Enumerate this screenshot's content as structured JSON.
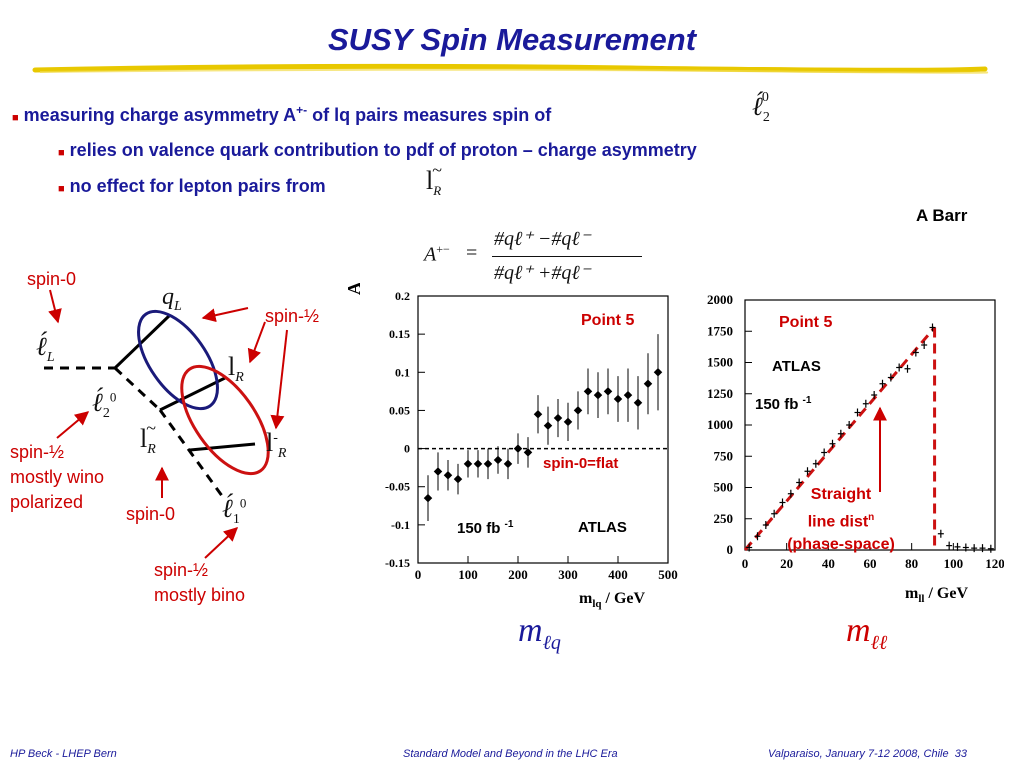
{
  "title": "SUSY Spin Measurement",
  "bullets": {
    "b1": "measuring charge asymmetry A",
    "b1_sup": "+-",
    "b1_tail": " of lq pairs measures spin of",
    "b2": "relies on valence quark contribution to pdf of proton – charge asymmetry",
    "b3": "no effect for lepton pairs from"
  },
  "author": "A Barr",
  "formula": {
    "lhs": "A",
    "lhs_sup": "+−",
    "eq": "=",
    "num": "#qℓ⁺ −#qℓ⁻",
    "den": "#qℓ⁺ +#qℓ⁻"
  },
  "diagram": {
    "spin0_top": "spin-0",
    "spin_half_top": "spin-½",
    "spin_half_wino": "spin-½",
    "mostly_wino": "mostly wino",
    "polarized": "polarized",
    "spin0_bottom": "spin-0",
    "spin_half_bino": "spin-½",
    "mostly_bino": "mostly bino",
    "q_L": "q",
    "q_L_sub": "L",
    "l_R": "l",
    "l_R_sub": "R",
    "l_bar": "l",
    "l_bar_sup": "-",
    "l_bar_sub": "R"
  },
  "chart_data": [
    {
      "type": "scatter",
      "title": "",
      "xlabel": "m",
      "xlabel_sub": "lq",
      "xlabel_unit": " / GeV",
      "ylabel": "A",
      "ylabel_sup": "+-",
      "xlim": [
        0,
        500
      ],
      "ylim": [
        -0.15,
        0.2
      ],
      "x_ticks": [
        0,
        100,
        200,
        300,
        400,
        500
      ],
      "y_ticks": [
        -0.15,
        -0.1,
        -0.05,
        0,
        0.05,
        0.1,
        0.15,
        0.2
      ],
      "y_tick_labels": [
        "-0.15",
        "-0.1",
        "-0.05",
        "0",
        "0.05",
        "0.1",
        "0.15",
        "0.2"
      ],
      "reference_line": 0,
      "annotations": {
        "point": "Point 5",
        "flat": "spin-0=flat",
        "lumi": "150 fb",
        "lumi_sup": "-1",
        "experiment": "ATLAS"
      },
      "x": [
        20,
        40,
        60,
        80,
        100,
        120,
        140,
        160,
        180,
        200,
        220,
        240,
        260,
        280,
        300,
        320,
        340,
        360,
        380,
        400,
        420,
        440,
        460,
        480
      ],
      "y": [
        -0.065,
        -0.03,
        -0.035,
        -0.04,
        -0.02,
        -0.02,
        -0.02,
        -0.015,
        -0.02,
        0.0,
        -0.005,
        0.045,
        0.03,
        0.04,
        0.035,
        0.05,
        0.075,
        0.07,
        0.075,
        0.065,
        0.07,
        0.06,
        0.085,
        0.1
      ],
      "yerr": [
        0.03,
        0.025,
        0.02,
        0.02,
        0.018,
        0.018,
        0.02,
        0.018,
        0.02,
        0.02,
        0.02,
        0.025,
        0.025,
        0.025,
        0.025,
        0.025,
        0.03,
        0.03,
        0.03,
        0.03,
        0.035,
        0.035,
        0.04,
        0.05
      ]
    },
    {
      "type": "scatter",
      "title": "",
      "xlabel": "m",
      "xlabel_sub": "ll",
      "xlabel_unit": " / GeV",
      "xlim": [
        0,
        120
      ],
      "ylim": [
        0,
        2000
      ],
      "x_ticks": [
        0,
        20,
        40,
        60,
        80,
        100,
        120
      ],
      "y_ticks": [
        0,
        250,
        500,
        750,
        1000,
        1250,
        1500,
        1750,
        2000
      ],
      "annotations": {
        "point": "Point 5",
        "experiment": "ATLAS",
        "lumi": "150 fb",
        "lumi_sup": "-1",
        "straight1": "Straight",
        "straight2": "line dist",
        "straight2_sup": "n",
        "straight3": "(phase-space)"
      },
      "fit_line": {
        "x": [
          0,
          91
        ],
        "y": [
          0,
          1780
        ]
      },
      "edge_x": 91,
      "x": [
        2,
        6,
        10,
        14,
        18,
        22,
        26,
        30,
        34,
        38,
        42,
        46,
        50,
        54,
        58,
        62,
        66,
        70,
        74,
        78,
        82,
        86,
        90,
        94,
        98,
        102,
        106,
        110,
        114,
        118
      ],
      "y": [
        20,
        110,
        200,
        290,
        380,
        450,
        540,
        630,
        690,
        780,
        850,
        930,
        1000,
        1100,
        1170,
        1240,
        1330,
        1380,
        1460,
        1450,
        1580,
        1640,
        1780,
        130,
        35,
        25,
        20,
        15,
        15,
        10
      ]
    }
  ],
  "bottom_labels": {
    "m_lq": "m",
    "m_lq_sub": "ℓq",
    "m_ll": "m",
    "m_ll_sub": "ℓℓ"
  },
  "footer": {
    "left": "HP Beck - LHEP Bern",
    "center": "Standard Model and Beyond in the LHC Era",
    "right": "Valparaiso, January 7-12 2008, Chile",
    "page": "33"
  },
  "colors": {
    "title": "#1a1a9a",
    "accent": "#cc0000",
    "underline": "#e8c800"
  }
}
